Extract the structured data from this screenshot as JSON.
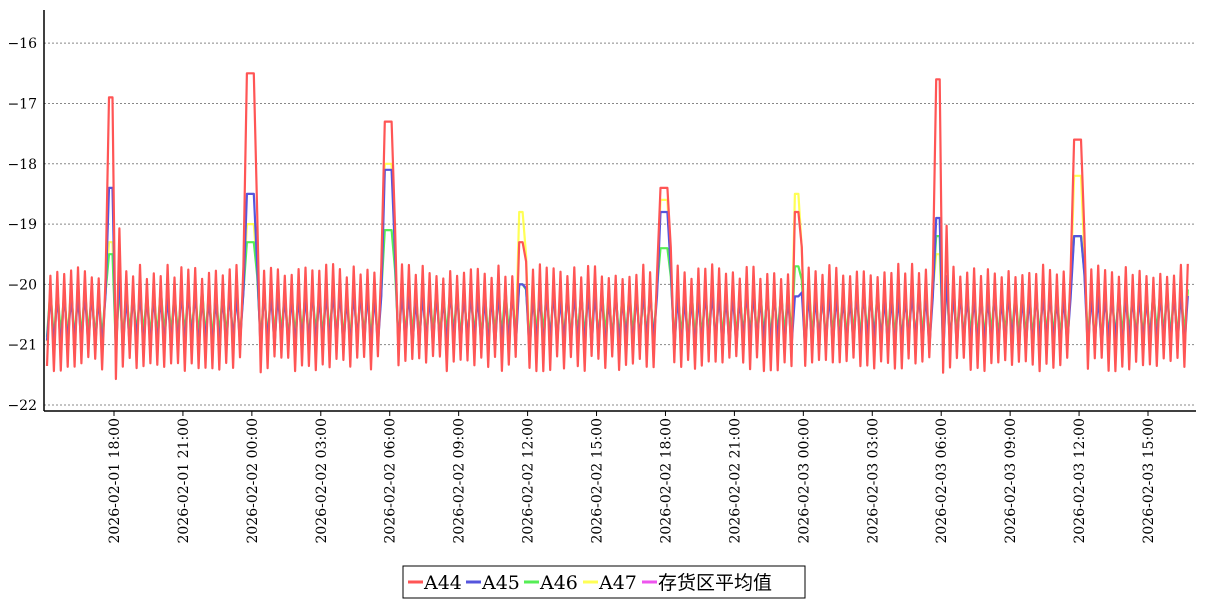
{
  "chart_data": {
    "type": "line",
    "title": "",
    "xlabel": "",
    "ylabel": "",
    "ylim": [
      -22.1,
      -15.45
    ],
    "yticks": [
      -16,
      -17,
      -18,
      -19,
      -20,
      -21,
      -22
    ],
    "ytick_labels": [
      "−16",
      "−17",
      "−18",
      "−19",
      "−20",
      "−21",
      "−22"
    ],
    "grid": true,
    "legend_position": "bottom-center",
    "x_range": [
      "2026-02-01 15:00",
      "2026-02-03 17:00"
    ],
    "xticks": [
      "2026-02-01 18:00",
      "2026-02-01 21:00",
      "2026-02-02 00:00",
      "2026-02-02 03:00",
      "2026-02-02 06:00",
      "2026-02-02 09:00",
      "2026-02-02 12:00",
      "2026-02-02 15:00",
      "2026-02-02 18:00",
      "2026-02-02 21:00",
      "2026-02-03 00:00",
      "2026-02-03 03:00",
      "2026-02-03 06:00",
      "2026-02-03 09:00",
      "2026-02-03 12:00",
      "2026-02-03 15:00"
    ],
    "cycle_minutes": 18,
    "base_range": [
      -21.4,
      -19.7
    ],
    "defrost_peaks": [
      {
        "time": "2026-02-01 17:50",
        "A44": -16.9,
        "A45": -18.4,
        "A46": -19.5,
        "A47": -19.3
      },
      {
        "time": "2026-02-01 23:55",
        "A44": -16.5,
        "A45": -18.5,
        "A46": -19.3,
        "A47": -19.0
      },
      {
        "time": "2026-02-02 05:55",
        "A44": -17.3,
        "A45": -18.1,
        "A46": -19.1,
        "A47": -18.0
      },
      {
        "time": "2026-02-02 11:45",
        "A44": -19.3,
        "A45": -20.0,
        "A46": -20.0,
        "A47": -18.8
      },
      {
        "time": "2026-02-02 17:55",
        "A44": -18.4,
        "A45": -18.8,
        "A46": -19.4,
        "A47": -18.6
      },
      {
        "time": "2026-02-02 23:45",
        "A44": -18.8,
        "A45": -20.2,
        "A46": -19.7,
        "A47": -18.5
      },
      {
        "time": "2026-02-03 05:50",
        "A44": -16.6,
        "A45": -18.9,
        "A46": -19.2,
        "A47": -19.5
      },
      {
        "time": "2026-02-03 11:55",
        "A44": -17.6,
        "A45": -19.2,
        "A46": -19.2,
        "A47": -18.2
      }
    ],
    "series": [
      {
        "name": "A44",
        "color": "#ff5555"
      },
      {
        "name": "A45",
        "color": "#5555dd"
      },
      {
        "name": "A46",
        "color": "#55ee55"
      },
      {
        "name": "A47",
        "color": "#ffff55"
      },
      {
        "name": "存货区平均值",
        "color": "#ee55ee"
      }
    ]
  }
}
